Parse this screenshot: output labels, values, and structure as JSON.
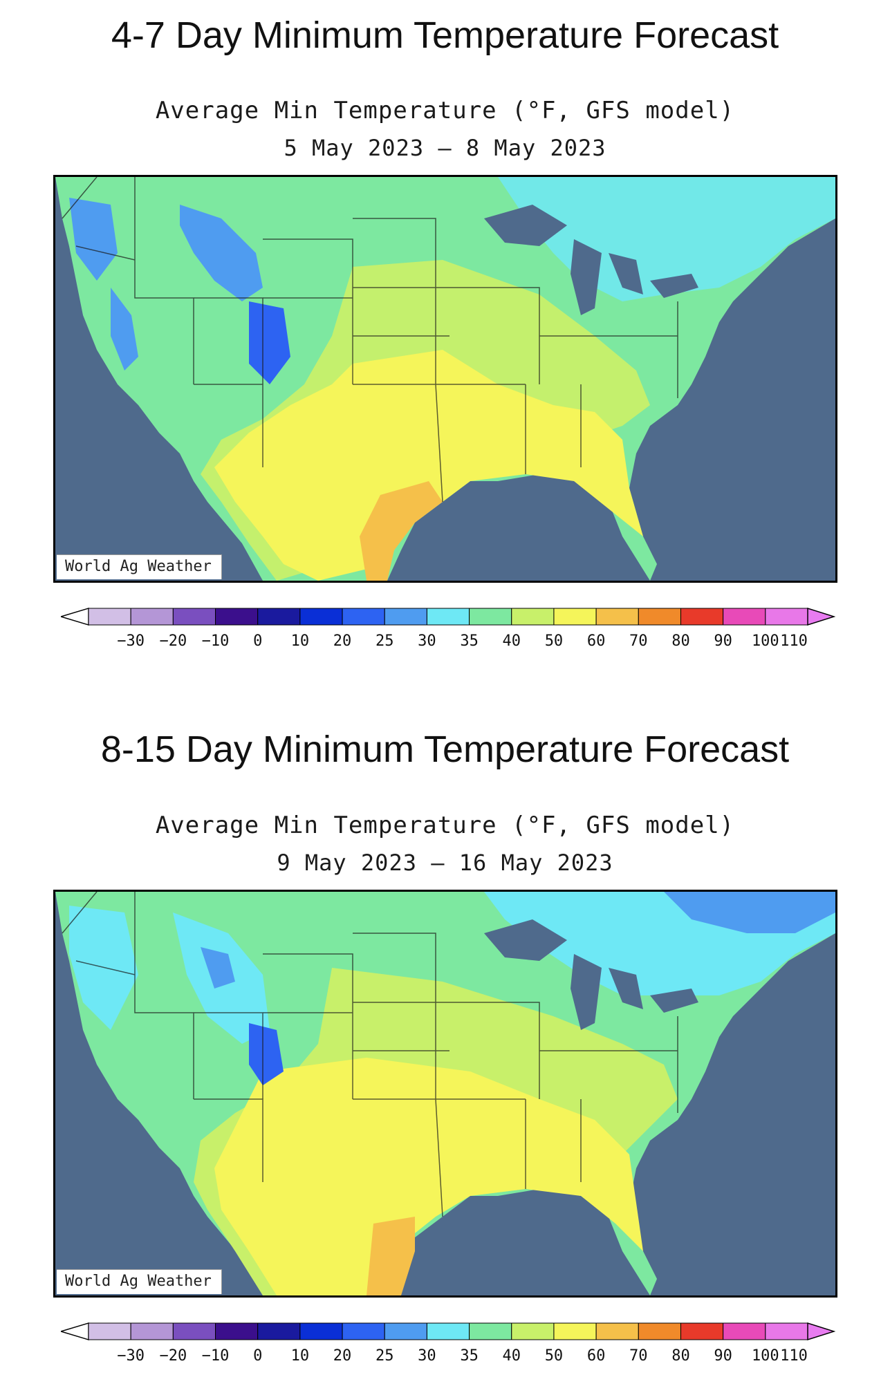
{
  "panels": [
    {
      "heading": "4-7 Day Minimum Temperature Forecast",
      "subtitle": "Average Min Temperature (°F, GFS model)",
      "date_range": "5 May 2023 – 8 May 2023",
      "watermark": "World Ag Weather"
    },
    {
      "heading": "8-15 Day Minimum Temperature Forecast",
      "subtitle": "Average Min Temperature (°F, GFS model)",
      "date_range": "9 May 2023 – 16 May 2023",
      "watermark": "World Ag Weather"
    }
  ],
  "legend": {
    "tick_labels": [
      "−30",
      "−20",
      "−10",
      "0",
      "10",
      "20",
      "25",
      "30",
      "35",
      "40",
      "50",
      "60",
      "70",
      "80",
      "90",
      "100",
      "110"
    ],
    "colors": [
      "#d2bfe6",
      "#b496d6",
      "#7a4fbf",
      "#3b0f8c",
      "#1a1a9e",
      "#0a2fd6",
      "#2d63f2",
      "#4f9cf0",
      "#6ee8f5",
      "#7de8a0",
      "#c8f06a",
      "#f5f55a",
      "#f5c04a",
      "#f08a2a",
      "#e83a2a",
      "#e84ab8",
      "#e878e8"
    ],
    "low_arrow_color": "#ffffff",
    "high_arrow_color": "#e87cf0"
  },
  "colors": {
    "ocean": "#4f6a8c",
    "lakes": "#4f6a8c",
    "land_base": "#7de8a0"
  }
}
